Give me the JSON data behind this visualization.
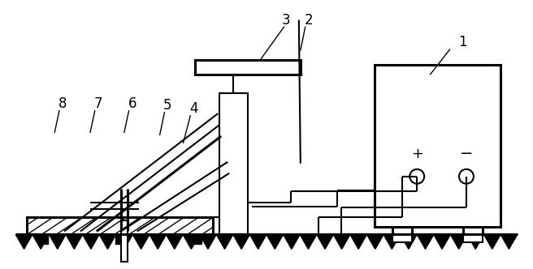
{
  "bg_color": "#ffffff",
  "line_color": "#000000",
  "lw_thin": 1.0,
  "lw_med": 1.5,
  "lw_thick": 2.2,
  "fig_width": 6.56,
  "fig_height": 3.32
}
